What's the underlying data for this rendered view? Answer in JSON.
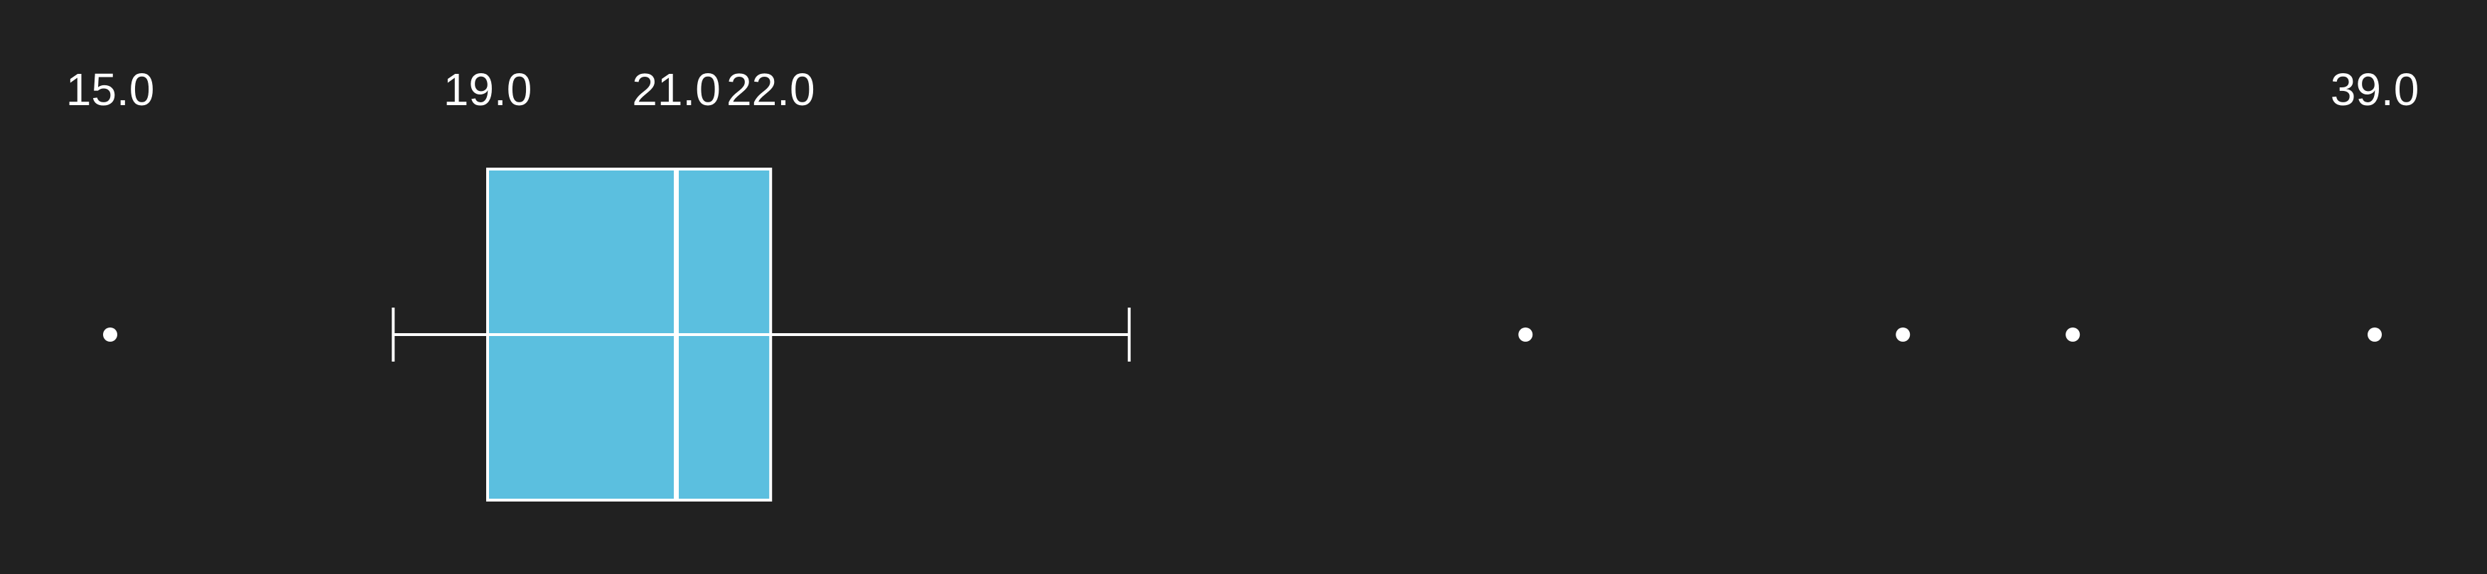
{
  "chart_data": {
    "type": "boxplot",
    "orientation": "horizontal",
    "xlim": [
      15,
      39
    ],
    "box": {
      "whisker_low": 18,
      "q1": 19,
      "median": 21,
      "q3": 22,
      "whisker_high": 25.8
    },
    "outliers": [
      15,
      30,
      34,
      35.8,
      39
    ],
    "labels": [
      {
        "value": 15,
        "text": "15.0"
      },
      {
        "value": 19,
        "text": "19.0"
      },
      {
        "value": 21,
        "text": "21.0"
      },
      {
        "value": 22,
        "text": "22.0"
      },
      {
        "value": 39,
        "text": "39.0"
      }
    ],
    "colors": {
      "background": "#212121",
      "box_fill": "#5bbfdf",
      "lines": "#ffffff",
      "text": "#ffffff"
    }
  }
}
